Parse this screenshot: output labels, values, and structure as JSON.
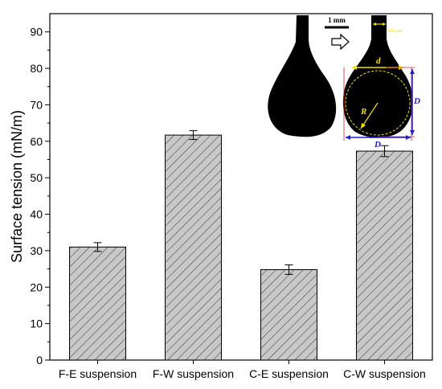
{
  "chart_data": {
    "type": "bar",
    "categories": [
      "F-E suspension",
      "F-W suspension",
      "C-E suspension",
      "C-W suspension"
    ],
    "values": [
      31.0,
      61.7,
      24.8,
      57.3
    ],
    "errors": [
      1.2,
      1.2,
      1.3,
      1.5
    ],
    "title": "",
    "xlabel": "",
    "ylabel": "Surface tension (mN/m)",
    "ylim": [
      0,
      95
    ],
    "yticks": [
      0,
      10,
      20,
      30,
      40,
      50,
      60,
      70,
      80,
      90
    ],
    "grid": false,
    "bar_pattern": "diagonal-hatch",
    "bar_fill": "#c8c8c8"
  },
  "inset": {
    "scale_label": "1 mm",
    "needle_label": "500 μm",
    "label_d_small": "d",
    "label_D_right": "D",
    "label_D_bottom": "D",
    "label_R": "R",
    "accent_yellow": "#f5e000",
    "accent_blue": "#1f1fd0",
    "accent_red": "#d02020"
  }
}
